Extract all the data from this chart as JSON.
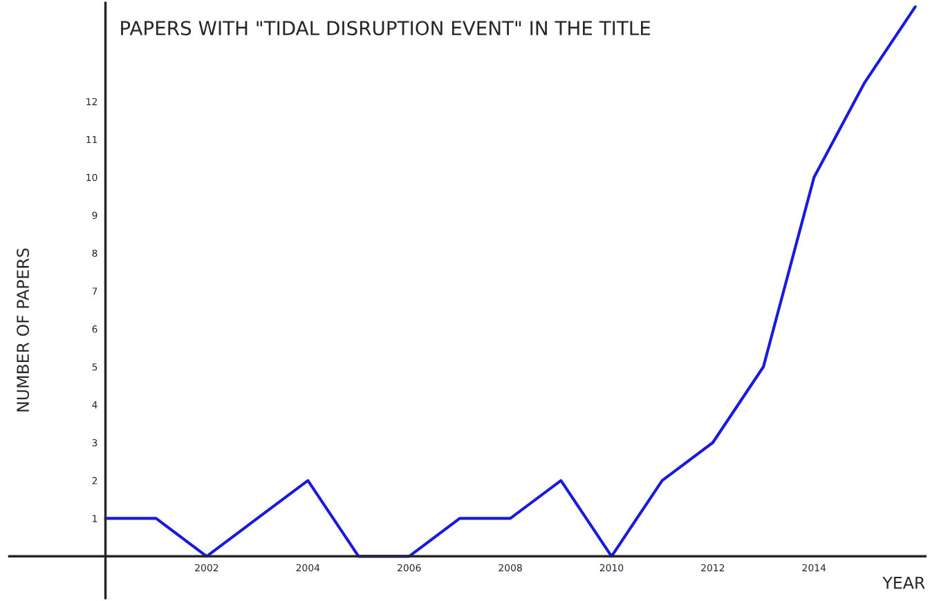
{
  "chart_data": {
    "type": "line",
    "title": "PAPERS WITH \"TIDAL DISRUPTION EVENT\" IN THE TITLE",
    "xlabel": "YEAR",
    "ylabel": "NUMBER OF PAPERS",
    "x": [
      2000,
      2001,
      2002,
      2003,
      2004,
      2005,
      2006,
      2007,
      2008,
      2009,
      2010,
      2011,
      2012,
      2013,
      2014,
      2015,
      2016
    ],
    "series": [
      {
        "color": "#1a1adf",
        "values": [
          1,
          1,
          0,
          1,
          2,
          0,
          0,
          1,
          1,
          2,
          0,
          2,
          3,
          5,
          10,
          12.5,
          14.5
        ]
      }
    ],
    "xlim": [
      1998.1,
      2016.2
    ],
    "ylim": [
      -1.1,
      14.6
    ],
    "xticks": [
      2002,
      2004,
      2006,
      2008,
      2010,
      2012,
      2014
    ],
    "yticks": [
      1,
      2,
      3,
      4,
      5,
      6,
      7,
      8,
      9,
      10,
      11,
      12
    ],
    "grid": false,
    "marker": "none",
    "line_style": "solid"
  }
}
